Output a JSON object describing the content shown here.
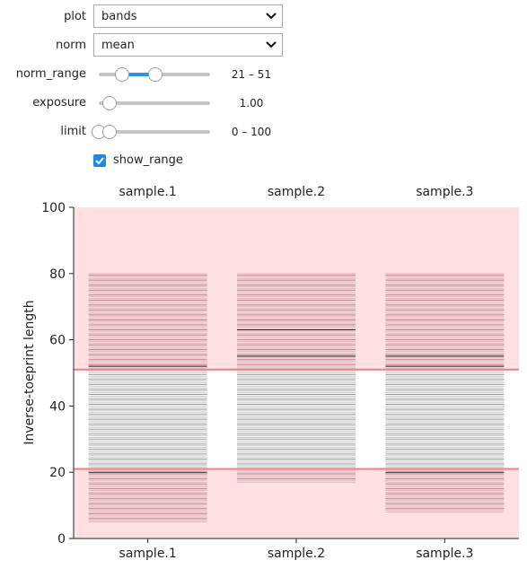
{
  "controls": {
    "plot": {
      "label": "plot",
      "value": "bands"
    },
    "norm": {
      "label": "norm",
      "value": "mean"
    },
    "norm_range": {
      "label": "norm_range",
      "low": 21,
      "high": 51,
      "min": 0,
      "max": 100,
      "readout": "21 – 51"
    },
    "exposure": {
      "label": "exposure",
      "value": 1.0,
      "min": 0,
      "max": 10,
      "readout": "1.00"
    },
    "limit": {
      "label": "limit",
      "low": 0,
      "high": 100,
      "min": 0,
      "max": 1000,
      "readout": "0 – 100"
    },
    "show_range": {
      "label": "show_range",
      "checked": true
    }
  },
  "colors": {
    "accent": "#2196f3",
    "range_fill": "#ffe0e3",
    "range_line": "#f08080",
    "band_dark": "#1a1a1a"
  },
  "chart_data": {
    "type": "bands",
    "title": "",
    "xlabel": "",
    "ylabel": "Inverse-toeprint length",
    "ylim": [
      0,
      100
    ],
    "yticks": [
      0,
      20,
      40,
      60,
      80,
      100
    ],
    "categories": [
      "sample.1",
      "sample.2",
      "sample.3"
    ],
    "highlight_range": [
      21,
      51
    ],
    "series": [
      {
        "category": "sample.1",
        "band_min": 5,
        "band_max": 80,
        "strong_bands": [
          20,
          21,
          51,
          52
        ]
      },
      {
        "category": "sample.2",
        "band_min": 17,
        "band_max": 80,
        "strong_bands": [
          21,
          51,
          55,
          63
        ]
      },
      {
        "category": "sample.3",
        "band_min": 8,
        "band_max": 80,
        "strong_bands": [
          20,
          21,
          52,
          55
        ]
      }
    ]
  }
}
